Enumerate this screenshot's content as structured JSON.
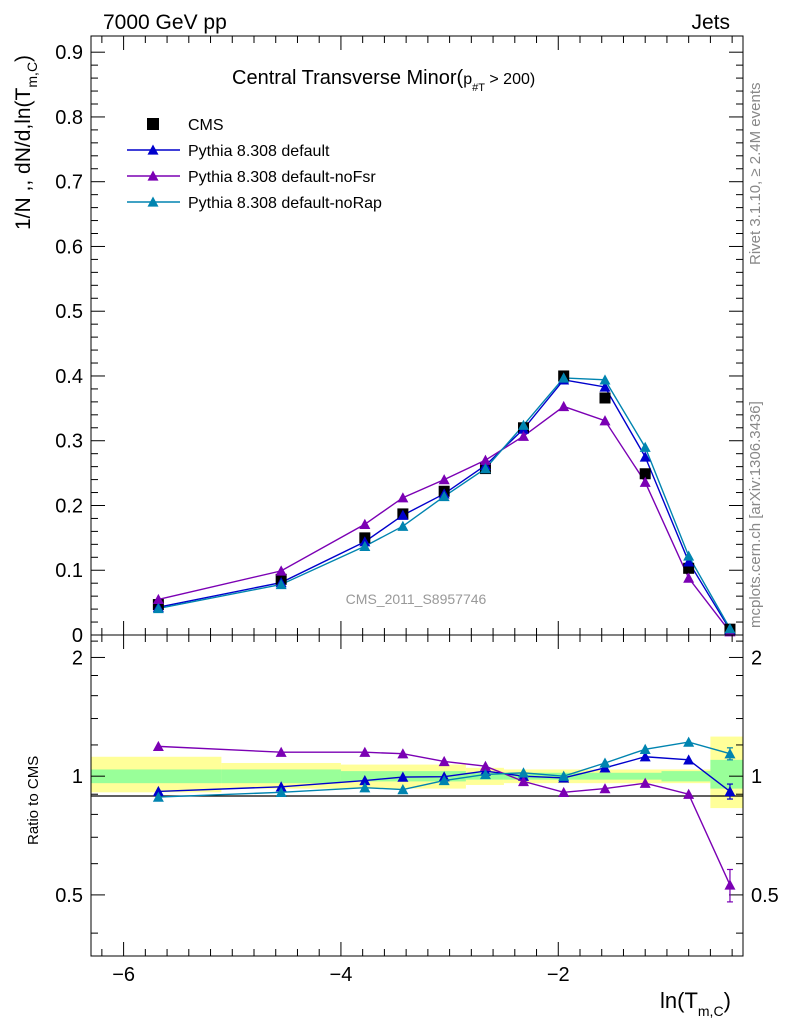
{
  "header": {
    "left": "7000 GeV pp",
    "right": "Jets"
  },
  "side_labels": {
    "top": "Rivet 3.1.10, ≥ 2.4M events",
    "bottom": "mcplots.cern.ch [arXiv:1306.3436]"
  },
  "watermark": "CMS_2011_S8957746",
  "plot_title": {
    "main": "Central Transverse Minor(",
    "p": "p",
    "sub": "#T",
    "tail": " > 200)"
  },
  "colors": {
    "cms": "#000000",
    "default": "#0000cc",
    "noFsr": "#7b00b4",
    "noRap": "#0084b0",
    "band_inner": "#99ff99",
    "band_outer": "#ffff99"
  },
  "chart_data": [
    {
      "type": "line",
      "panel": "main",
      "title": "Central Transverse Minor(p#T > 200)",
      "xlabel": "ln(T m,C)",
      "ylabel": "1/N ,, dN/d,ln(T m,C)",
      "xlim": [
        -6.3,
        -0.3
      ],
      "ylim": [
        0,
        0.925
      ],
      "yticks": [
        0.1,
        0.2,
        0.3,
        0.4,
        0.5,
        0.6,
        0.7,
        0.8,
        0.9
      ],
      "ytick_labels": [
        "0.1",
        "0.2",
        "0.3",
        "0.4",
        "0.5",
        "0.6",
        "0.7",
        "0.8",
        "0.9"
      ],
      "bottom_tick_label": "0",
      "legend_position": "top-left",
      "x": [
        -5.68,
        -4.55,
        -3.78,
        -3.43,
        -3.05,
        -2.67,
        -2.32,
        -1.95,
        -1.57,
        -1.2,
        -0.8,
        -0.42
      ],
      "series": [
        {
          "name": "CMS",
          "marker": "square",
          "color_key": "cms",
          "values": [
            0.047,
            0.086,
            0.15,
            0.187,
            0.222,
            0.257,
            0.32,
            0.4,
            0.366,
            0.249,
            0.103,
            0.009
          ]
        },
        {
          "name": "Pythia 8.308 default",
          "marker": "triangle",
          "color_key": "default",
          "values": [
            0.043,
            0.081,
            0.144,
            0.185,
            0.218,
            0.262,
            0.318,
            0.394,
            0.383,
            0.275,
            0.113,
            0.008
          ]
        },
        {
          "name": "Pythia 8.308 default-noFsr",
          "marker": "triangle",
          "color_key": "noFsr",
          "values": [
            0.055,
            0.099,
            0.171,
            0.212,
            0.24,
            0.27,
            0.307,
            0.353,
            0.331,
            0.236,
            0.088,
            0.005
          ]
        },
        {
          "name": "Pythia 8.308 default-noRap",
          "marker": "triangle",
          "color_key": "noRap",
          "values": [
            0.041,
            0.078,
            0.137,
            0.168,
            0.214,
            0.257,
            0.324,
            0.397,
            0.394,
            0.29,
            0.122,
            0.01
          ]
        }
      ]
    },
    {
      "type": "line",
      "panel": "ratio",
      "xlabel": "ln(T m,C)",
      "ylabel": "Ratio to CMS",
      "xlim": [
        -6.3,
        -0.3
      ],
      "ylim": [
        0.35,
        2.28
      ],
      "yticks": [
        0.5,
        1,
        2
      ],
      "ytick_labels": [
        "0.5",
        "1",
        "2"
      ],
      "xticks": [
        -6,
        -4,
        -2
      ],
      "xtick_labels": [
        "−6",
        "−4",
        "−2"
      ],
      "x": [
        -5.68,
        -4.55,
        -3.78,
        -3.43,
        -3.05,
        -2.67,
        -2.32,
        -1.95,
        -1.57,
        -1.2,
        -0.8,
        -0.42
      ],
      "series": [
        {
          "name": "Pythia 8.308 default",
          "color_key": "default",
          "values": [
            0.915,
            0.94,
            0.975,
            0.995,
            0.997,
            1.03,
            1.0,
            0.99,
            1.05,
            1.12,
            1.1,
            0.915
          ],
          "errors": [
            0,
            0,
            0,
            0,
            0,
            0,
            0,
            0,
            0,
            0,
            0,
            0.04
          ]
        },
        {
          "name": "Pythia 8.308 default-noFsr",
          "color_key": "noFsr",
          "values": [
            1.19,
            1.15,
            1.15,
            1.14,
            1.09,
            1.06,
            0.97,
            0.91,
            0.93,
            0.96,
            0.9,
            0.53
          ],
          "errors": [
            0,
            0,
            0,
            0,
            0,
            0,
            0,
            0,
            0,
            0,
            0,
            0.05
          ]
        },
        {
          "name": "Pythia 8.308 default-noRap",
          "color_key": "noRap",
          "values": [
            0.885,
            0.91,
            0.935,
            0.925,
            0.975,
            1.01,
            1.02,
            1.0,
            1.08,
            1.17,
            1.22,
            1.14
          ],
          "errors": [
            0,
            0,
            0,
            0,
            0,
            0,
            0,
            0,
            0,
            0,
            0,
            0.04
          ]
        }
      ],
      "bands": [
        {
          "x0": -6.3,
          "x1": -5.1,
          "inner": [
            0.96,
            1.04
          ],
          "outer": [
            0.91,
            1.12
          ]
        },
        {
          "x0": -5.1,
          "x1": -4.0,
          "inner": [
            0.96,
            1.04
          ],
          "outer": [
            0.93,
            1.08
          ]
        },
        {
          "x0": -4.0,
          "x1": -2.85,
          "inner": [
            0.97,
            1.03
          ],
          "outer": [
            0.93,
            1.07
          ]
        },
        {
          "x0": -2.85,
          "x1": -2.5,
          "inner": [
            0.98,
            1.02
          ],
          "outer": [
            0.95,
            1.05
          ]
        },
        {
          "x0": -2.5,
          "x1": -1.05,
          "inner": [
            0.98,
            1.02
          ],
          "outer": [
            0.96,
            1.04
          ]
        },
        {
          "x0": -1.05,
          "x1": -0.6,
          "inner": [
            0.97,
            1.03
          ],
          "outer": [
            0.96,
            1.04
          ]
        },
        {
          "x0": -0.6,
          "x1": -0.3,
          "inner": [
            0.93,
            1.1
          ],
          "outer": [
            0.83,
            1.26
          ]
        }
      ]
    }
  ]
}
